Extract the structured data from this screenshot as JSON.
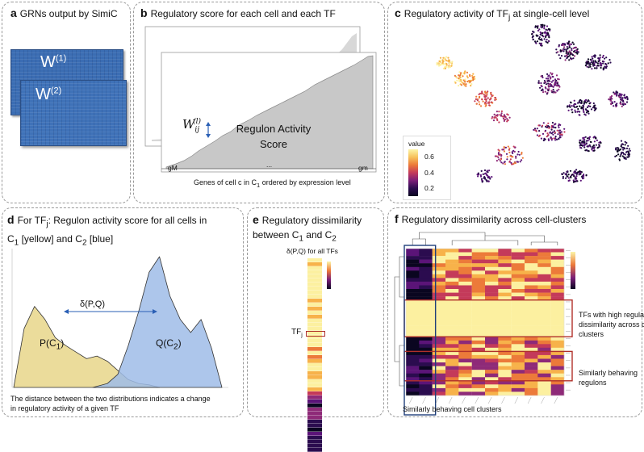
{
  "panels": {
    "a": {
      "letter": "a",
      "title": "GRNs output by SimiC",
      "matrix1": "W",
      "matrix1_sup": "(1)",
      "matrix2": "W",
      "matrix2_sup": "(2)"
    },
    "b": {
      "letter": "b",
      "title": "Regulatory score for each cell and each TF",
      "weight_main": "W",
      "weight_sub": "ij",
      "weight_sup": "(l)",
      "area_label_1": "Regulon Activity",
      "area_label_2": "Score",
      "axis_left": "gM",
      "axis_dots": "...",
      "axis_right": "gm",
      "caption_pre": "Genes of cell c in C",
      "caption_sub": "1",
      "caption_post": " ordered by expression level"
    },
    "c": {
      "letter": "c",
      "title_pre": "Regulatory activity of TF",
      "title_sub": "j",
      "title_post": " at single-cell level",
      "legend_title": "value",
      "legend_ticks": [
        "0.6",
        "0.4",
        "0.2"
      ]
    },
    "d": {
      "letter": "d",
      "title_l1_pre": "For TF",
      "title_l1_sub": "j",
      "title_l1_post": ":  Regulon activity score for all cells in",
      "title_l2": [
        {
          "t": "C"
        },
        {
          "sub": "1"
        },
        {
          "t": " [yellow] and C"
        },
        {
          "sub": "2"
        },
        {
          "t": " [blue]"
        }
      ],
      "delta_label": "δ(P,Q)",
      "p_label_pre": "P(C",
      "p_label_sub": "1",
      "p_label_post": ")",
      "q_label_pre": "Q(C",
      "q_label_sub": "2",
      "q_label_post": ")",
      "caption_l1": "The distance between the two distributions indicates a change",
      "caption_l2": "in regulatory activity of a given TF"
    },
    "e": {
      "letter": "e",
      "title_l1": "Regulatory dissimilarity",
      "title_l2_pre": "between C",
      "title_l2_sub1": "1",
      "title_l2_mid": " and C",
      "title_l2_sub2": "2",
      "subtitle": "δ(P,Q) for all TFs",
      "tf_label": "TF",
      "tf_sub": "j"
    },
    "f": {
      "letter": "f",
      "title": "Regulatory dissimilarity across cell-clusters",
      "annot1_l1": "TFs with high regulatory",
      "annot1_l2": "dissimilarity across cell",
      "annot1_l3": "clusters",
      "annot2_l1": "Similarly behaving",
      "annot2_l2": "regulons",
      "caption": "Similarly behaving cell clusters"
    }
  },
  "colors": {
    "yellow": "#e8d68a",
    "blue": "#9fbce8",
    "red": "#b0302a",
    "navy": "#1f3f7a",
    "matrix": "#3b6db3"
  },
  "chart_data": {
    "type": "area",
    "title": "Regulon activity score for all cells in C1 [yellow] and C2 [blue]",
    "series": [
      {
        "name": "P(C1)",
        "color": "yellow",
        "x": [
          0.0,
          0.05,
          0.1,
          0.15,
          0.2,
          0.25,
          0.3,
          0.35,
          0.4,
          0.45,
          0.5,
          0.55,
          0.6,
          0.65,
          0.7
        ],
        "y": [
          0.0,
          0.45,
          0.62,
          0.52,
          0.38,
          0.32,
          0.27,
          0.22,
          0.24,
          0.2,
          0.13,
          0.06,
          0.03,
          0.02,
          0.0
        ]
      },
      {
        "name": "Q(C2)",
        "color": "blue",
        "x": [
          0.38,
          0.45,
          0.5,
          0.55,
          0.6,
          0.65,
          0.7,
          0.75,
          0.8,
          0.85,
          0.9,
          0.95,
          1.0
        ],
        "y": [
          0.0,
          0.03,
          0.1,
          0.32,
          0.58,
          0.88,
          1.0,
          0.7,
          0.52,
          0.42,
          0.52,
          0.3,
          0.0
        ]
      }
    ],
    "annotations": [
      "δ(P,Q)"
    ]
  }
}
